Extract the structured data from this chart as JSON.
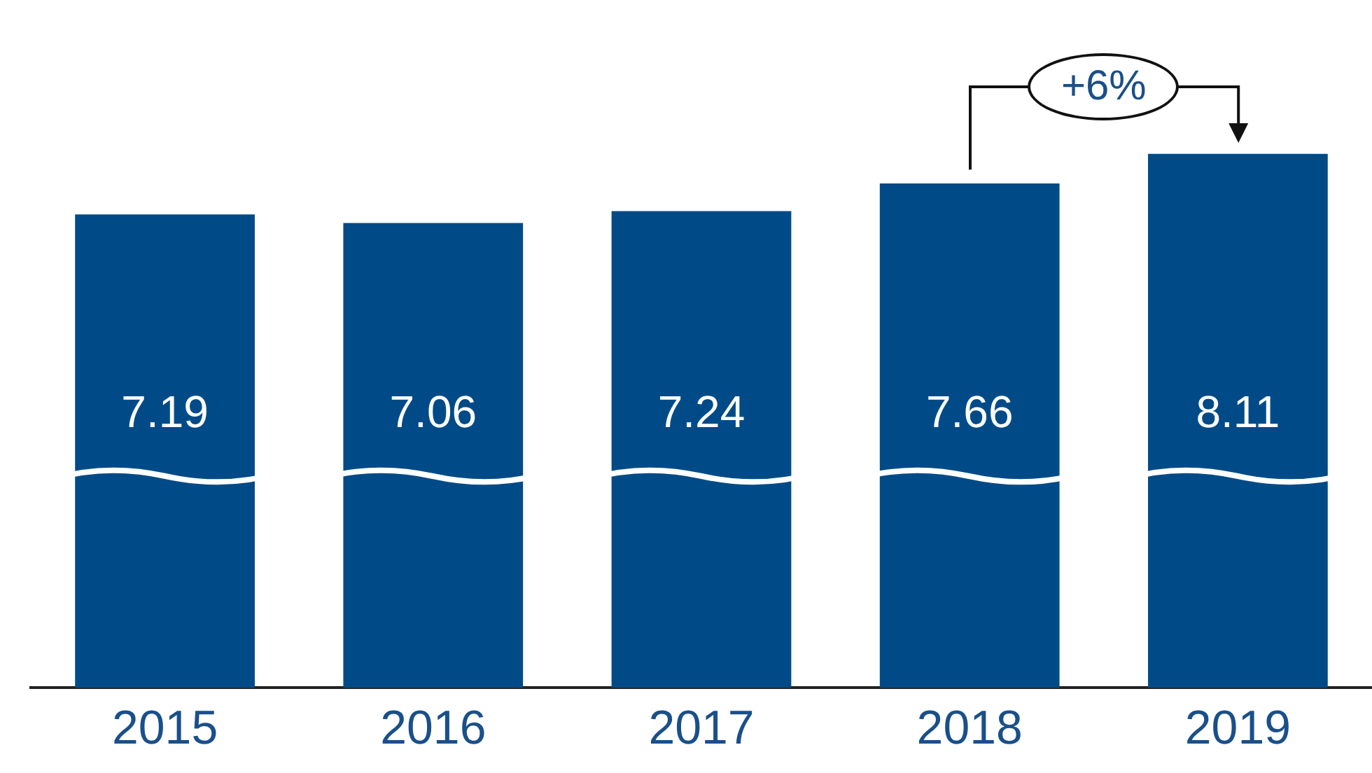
{
  "chart_data": {
    "type": "bar",
    "categories": [
      "2015",
      "2016",
      "2017",
      "2018",
      "2019"
    ],
    "values": [
      7.19,
      7.06,
      7.24,
      7.66,
      8.11
    ],
    "color": "#004b87",
    "data_labels": true,
    "grid": false,
    "legend": false,
    "tick_labels": "x",
    "annotations": [
      "+6%"
    ]
  }
}
